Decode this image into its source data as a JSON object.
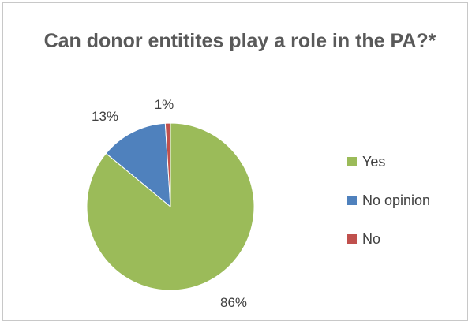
{
  "chart_data": {
    "type": "pie",
    "title": "Can donor entitites play a role in the PA?*",
    "categories": [
      "Yes",
      "No opinion",
      "No"
    ],
    "values": [
      86,
      13,
      1
    ],
    "data_labels": [
      "86%",
      "13%",
      "1%"
    ],
    "colors": [
      "#9bbb59",
      "#4f81bd",
      "#c0504d"
    ],
    "legend": {
      "placement": "right",
      "entries": [
        "Yes",
        "No opinion",
        "No"
      ]
    }
  }
}
